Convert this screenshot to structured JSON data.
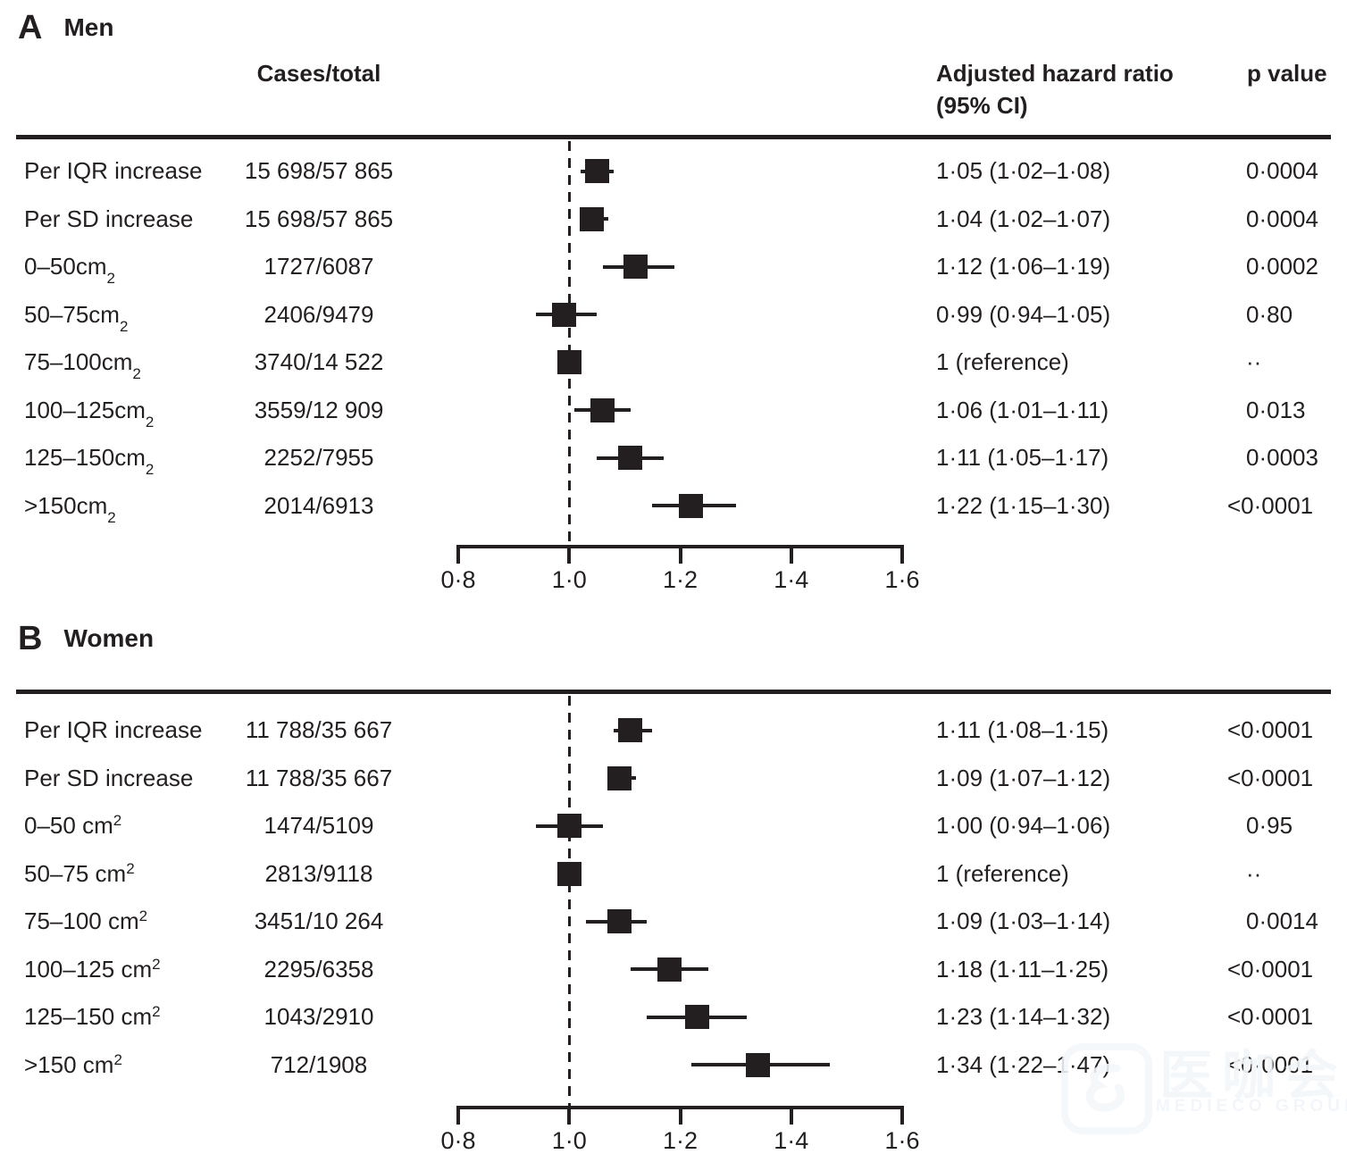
{
  "figure": {
    "background": "#ffffff",
    "ink_color": "#231f20",
    "watermark": {
      "logo_icon": "mediego-logo-icon",
      "text": "医咖会",
      "subtext": "MEDIECO GROUP",
      "color": "#f0f3f8"
    }
  },
  "chart_data": [
    {
      "type": "forest",
      "panel_letter": "A",
      "panel_title": "Men",
      "col_headers": {
        "cases": "Cases/total",
        "hr_line1": "Adjusted hazard ratio",
        "hr_line2": "(95% CI)",
        "p": "p value"
      },
      "axis": {
        "min": 0.8,
        "max": 1.6,
        "tick_values": [
          0.8,
          1.0,
          1.2,
          1.4,
          1.6
        ],
        "tick_labels": [
          "0·8",
          "1·0",
          "1·2",
          "1·4",
          "1·6"
        ],
        "reference_line": 1.0
      },
      "rows": [
        {
          "label": "Per IQR increase",
          "script": null,
          "script_text": "",
          "cases": "15 698/57 865",
          "hr": 1.05,
          "lo": 1.02,
          "hi": 1.08,
          "hr_text": "1·05 (1·02–1·08)",
          "p": "0·0004"
        },
        {
          "label": "Per SD increase",
          "script": null,
          "script_text": "",
          "cases": "15 698/57 865",
          "hr": 1.04,
          "lo": 1.02,
          "hi": 1.07,
          "hr_text": "1·04 (1·02–1·07)",
          "p": "0·0004"
        },
        {
          "label": "0–50cm",
          "script": "sub",
          "script_text": "2",
          "cases": "1727/6087",
          "hr": 1.12,
          "lo": 1.06,
          "hi": 1.19,
          "hr_text": "1·12 (1·06–1·19)",
          "p": "0·0002"
        },
        {
          "label": "50–75cm",
          "script": "sub",
          "script_text": "2",
          "cases": "2406/9479",
          "hr": 0.99,
          "lo": 0.94,
          "hi": 1.05,
          "hr_text": "0·99 (0·94–1·05)",
          "p": "0·80"
        },
        {
          "label": "75–100cm",
          "script": "sub",
          "script_text": "2",
          "cases": "3740/14 522",
          "hr": 1.0,
          "lo": null,
          "hi": null,
          "hr_text": "1 (reference)",
          "p": "··"
        },
        {
          "label": "100–125cm",
          "script": "sub",
          "script_text": "2",
          "cases": "3559/12 909",
          "hr": 1.06,
          "lo": 1.01,
          "hi": 1.11,
          "hr_text": "1·06 (1·01–1·11)",
          "p": "0·013"
        },
        {
          "label": "125–150cm",
          "script": "sub",
          "script_text": "2",
          "cases": "2252/7955",
          "hr": 1.11,
          "lo": 1.05,
          "hi": 1.17,
          "hr_text": "1·11 (1·05–1·17)",
          "p": "0·0003"
        },
        {
          "label": ">150cm",
          "script": "sub",
          "script_text": "2",
          "cases": "2014/6913",
          "hr": 1.22,
          "lo": 1.15,
          "hi": 1.3,
          "hr_text": "1·22 (1·15–1·30)",
          "p": "<0·0001"
        }
      ]
    },
    {
      "type": "forest",
      "panel_letter": "B",
      "panel_title": "Women",
      "col_headers": {
        "cases": "",
        "hr_line1": "",
        "hr_line2": "",
        "p": ""
      },
      "axis": {
        "min": 0.8,
        "max": 1.6,
        "tick_values": [
          0.8,
          1.0,
          1.2,
          1.4,
          1.6
        ],
        "tick_labels": [
          "0·8",
          "1·0",
          "1·2",
          "1·4",
          "1·6"
        ],
        "reference_line": 1.0
      },
      "rows": [
        {
          "label": "Per IQR increase",
          "script": null,
          "script_text": "",
          "cases": "11 788/35 667",
          "hr": 1.11,
          "lo": 1.08,
          "hi": 1.15,
          "hr_text": "1·11 (1·08–1·15)",
          "p": "<0·0001"
        },
        {
          "label": "Per SD increase",
          "script": null,
          "script_text": "",
          "cases": "11 788/35 667",
          "hr": 1.09,
          "lo": 1.07,
          "hi": 1.12,
          "hr_text": "1·09 (1·07–1·12)",
          "p": "<0·0001"
        },
        {
          "label": "0–50 cm",
          "script": "sup",
          "script_text": "2",
          "cases": "1474/5109",
          "hr": 1.0,
          "lo": 0.94,
          "hi": 1.06,
          "hr_text": "1·00 (0·94–1·06)",
          "p": "0·95"
        },
        {
          "label": "50–75 cm",
          "script": "sup",
          "script_text": "2",
          "cases": "2813/9118",
          "hr": 1.0,
          "lo": null,
          "hi": null,
          "hr_text": "1 (reference)",
          "p": "··"
        },
        {
          "label": "75–100 cm",
          "script": "sup",
          "script_text": "2",
          "cases": "3451/10 264",
          "hr": 1.09,
          "lo": 1.03,
          "hi": 1.14,
          "hr_text": "1·09 (1·03–1·14)",
          "p": "0·0014"
        },
        {
          "label": "100–125 cm",
          "script": "sup",
          "script_text": "2",
          "cases": "2295/6358",
          "hr": 1.18,
          "lo": 1.11,
          "hi": 1.25,
          "hr_text": "1·18 (1·11–1·25)",
          "p": "<0·0001"
        },
        {
          "label": "125–150 cm",
          "script": "sup",
          "script_text": "2",
          "cases": "1043/2910",
          "hr": 1.23,
          "lo": 1.14,
          "hi": 1.32,
          "hr_text": "1·23 (1·14–1·32)",
          "p": "<0·0001"
        },
        {
          "label": ">150 cm",
          "script": "sup",
          "script_text": "2",
          "cases": "712/1908",
          "hr": 1.34,
          "lo": 1.22,
          "hi": 1.47,
          "hr_text": "1·34 (1·22–1·47)",
          "p": "<0·0001"
        }
      ]
    }
  ]
}
